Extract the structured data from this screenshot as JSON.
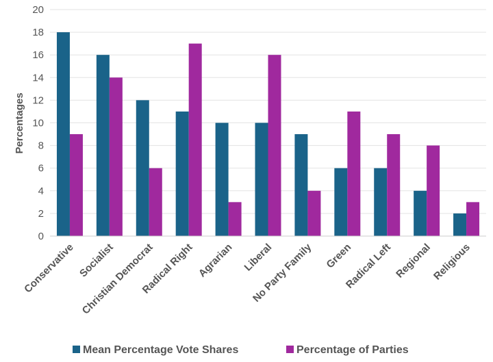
{
  "chart_data": {
    "type": "bar",
    "categories": [
      "Conservative",
      "Socialist",
      "Christian Democrat",
      "Radical Right",
      "Agrarian",
      "Liberal",
      "No Party Family",
      "Green",
      "Radical Left",
      "Regional",
      "Religious"
    ],
    "series": [
      {
        "name": "Mean Percentage Vote Shares",
        "color": "#1a6389",
        "values": [
          18,
          16,
          12,
          11,
          10,
          10,
          9,
          6,
          6,
          4,
          2
        ]
      },
      {
        "name": "Percentage of Parties",
        "color": "#a0299e",
        "values": [
          9,
          14,
          6,
          17,
          3,
          16,
          4,
          11,
          9,
          8,
          3
        ]
      }
    ],
    "ylabel": "Percentages",
    "xlabel": "",
    "ylim": [
      0,
      20
    ],
    "yticks": [
      0,
      2,
      4,
      6,
      8,
      10,
      12,
      14,
      16,
      18,
      20
    ],
    "grid": true,
    "legend_position": "bottom"
  }
}
